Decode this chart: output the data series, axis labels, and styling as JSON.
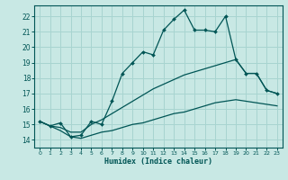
{
  "xlabel": "Humidex (Indice chaleur)",
  "ylabel": "",
  "bg_color": "#c8e8e4",
  "grid_color": "#a8d4d0",
  "line_color": "#005555",
  "xlim": [
    -0.5,
    23.5
  ],
  "ylim": [
    13.5,
    22.7
  ],
  "yticks": [
    14,
    15,
    16,
    17,
    18,
    19,
    20,
    21,
    22
  ],
  "xticks": [
    0,
    1,
    2,
    3,
    4,
    5,
    6,
    7,
    8,
    9,
    10,
    11,
    12,
    13,
    14,
    15,
    16,
    17,
    18,
    19,
    20,
    21,
    22,
    23
  ],
  "main_x": [
    0,
    1,
    2,
    3,
    4,
    5,
    6,
    7,
    8,
    9,
    10,
    11,
    12,
    13,
    14,
    15,
    16,
    17,
    18,
    19,
    20,
    21,
    22,
    23
  ],
  "main_y": [
    15.2,
    14.9,
    15.1,
    14.2,
    14.3,
    15.2,
    15.0,
    16.5,
    18.3,
    19.0,
    19.7,
    19.5,
    21.1,
    21.8,
    22.4,
    21.1,
    21.1,
    21.0,
    22.0,
    19.2,
    18.3,
    18.3,
    17.2,
    17.0
  ],
  "line2_x": [
    0,
    1,
    2,
    3,
    4,
    5,
    6,
    7,
    8,
    9,
    10,
    11,
    12,
    13,
    14,
    15,
    16,
    17,
    18,
    19,
    20,
    21,
    22,
    23
  ],
  "line2_y": [
    15.2,
    14.9,
    14.8,
    14.5,
    14.5,
    15.0,
    15.3,
    15.7,
    16.1,
    16.5,
    16.9,
    17.3,
    17.6,
    17.9,
    18.2,
    18.4,
    18.6,
    18.8,
    19.0,
    19.2,
    18.3,
    18.3,
    17.2,
    17.0
  ],
  "line3_x": [
    0,
    1,
    2,
    3,
    4,
    5,
    6,
    7,
    8,
    9,
    10,
    11,
    12,
    13,
    14,
    15,
    16,
    17,
    18,
    19,
    20,
    21,
    22,
    23
  ],
  "line3_y": [
    15.2,
    14.9,
    14.6,
    14.2,
    14.1,
    14.3,
    14.5,
    14.6,
    14.8,
    15.0,
    15.1,
    15.3,
    15.5,
    15.7,
    15.8,
    16.0,
    16.2,
    16.4,
    16.5,
    16.6,
    16.5,
    16.4,
    16.3,
    16.2
  ]
}
